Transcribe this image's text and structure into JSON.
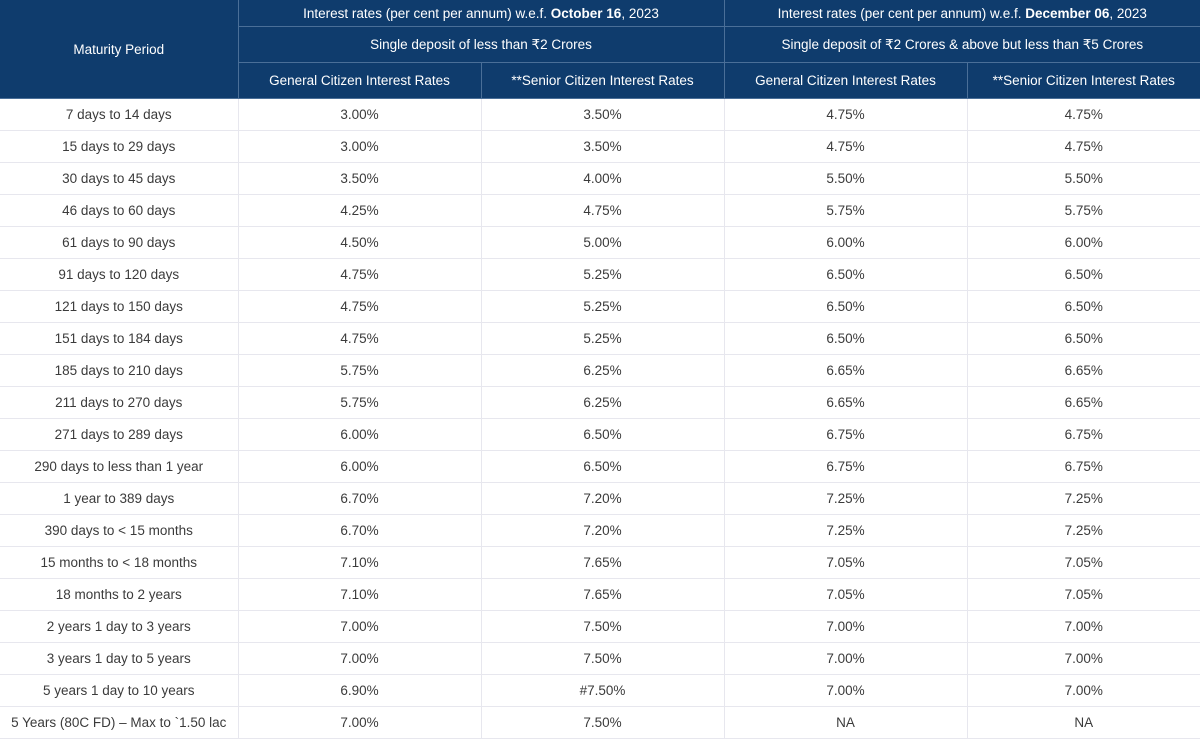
{
  "header": {
    "maturity_label": "Maturity Period",
    "group1": {
      "prefix": "Interest rates (per cent per annum) w.e.f. ",
      "date": "October 16",
      "year": ", 2023"
    },
    "group2": {
      "prefix": "Interest rates (per cent per annum) w.e.f. ",
      "date": "December 06",
      "year": ", 2023"
    },
    "slab1": "Single deposit of less than ₹2 Crores",
    "slab2": "Single deposit of ₹2 Crores & above but less than ₹5 Crores",
    "general_label": "General Citizen Interest Rates",
    "senior_label": "**Senior Citizen Interest Rates"
  },
  "rows": [
    [
      "7 days to 14 days",
      "3.00%",
      "3.50%",
      "4.75%",
      "4.75%"
    ],
    [
      "15 days to 29 days",
      "3.00%",
      "3.50%",
      "4.75%",
      "4.75%"
    ],
    [
      "30 days to 45 days",
      "3.50%",
      "4.00%",
      "5.50%",
      "5.50%"
    ],
    [
      "46 days to 60 days",
      "4.25%",
      "4.75%",
      "5.75%",
      "5.75%"
    ],
    [
      "61 days to 90 days",
      "4.50%",
      "5.00%",
      "6.00%",
      "6.00%"
    ],
    [
      "91 days to 120 days",
      "4.75%",
      "5.25%",
      "6.50%",
      "6.50%"
    ],
    [
      "121 days to 150 days",
      "4.75%",
      "5.25%",
      "6.50%",
      "6.50%"
    ],
    [
      "151 days to 184 days",
      "4.75%",
      "5.25%",
      "6.50%",
      "6.50%"
    ],
    [
      "185 days to 210 days",
      "5.75%",
      "6.25%",
      "6.65%",
      "6.65%"
    ],
    [
      "211 days to 270 days",
      "5.75%",
      "6.25%",
      "6.65%",
      "6.65%"
    ],
    [
      "271 days to 289 days",
      "6.00%",
      "6.50%",
      "6.75%",
      "6.75%"
    ],
    [
      "290 days to less than 1 year",
      "6.00%",
      "6.50%",
      "6.75%",
      "6.75%"
    ],
    [
      "1 year to 389 days",
      "6.70%",
      "7.20%",
      "7.25%",
      "7.25%"
    ],
    [
      "390 days to < 15 months",
      "6.70%",
      "7.20%",
      "7.25%",
      "7.25%"
    ],
    [
      "15 months to < 18 months",
      "7.10%",
      "7.65%",
      "7.05%",
      "7.05%"
    ],
    [
      "18 months to 2 years",
      "7.10%",
      "7.65%",
      "7.05%",
      "7.05%"
    ],
    [
      "2 years 1 day to 3 years",
      "7.00%",
      "7.50%",
      "7.00%",
      "7.00%"
    ],
    [
      "3 years 1 day to 5 years",
      "7.00%",
      "7.50%",
      "7.00%",
      "7.00%"
    ],
    [
      "5 years 1 day to 10 years",
      "6.90%",
      "#7.50%",
      "7.00%",
      "7.00%"
    ],
    [
      "5 Years (80C FD) – Max to `1.50 lac",
      "7.00%",
      "7.50%",
      "NA",
      "NA"
    ]
  ]
}
